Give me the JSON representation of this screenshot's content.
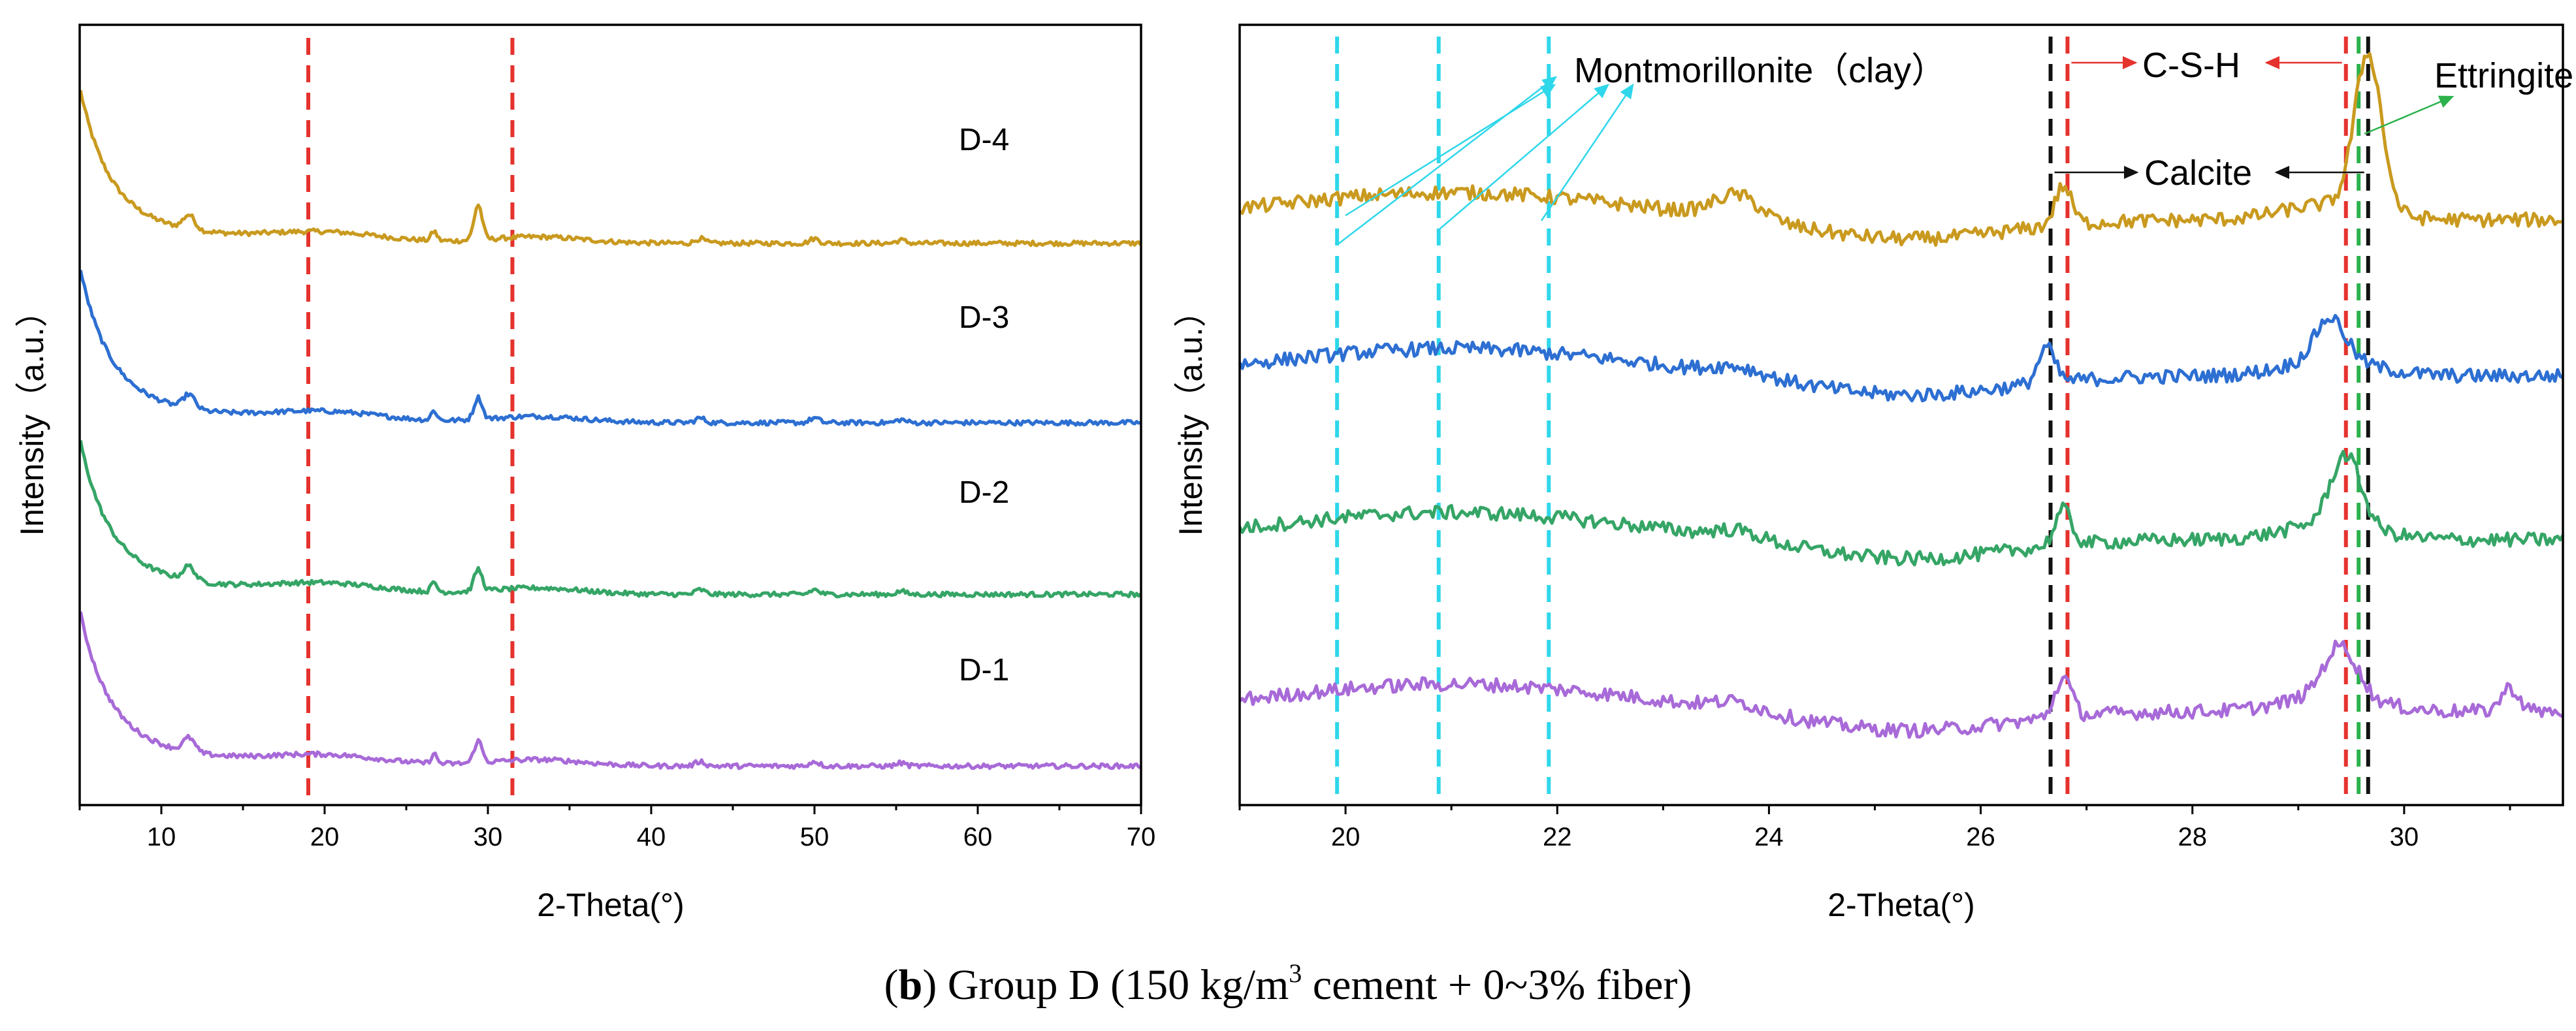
{
  "colors": {
    "D-4": "#c99a1f",
    "D-3": "#2d6fd2",
    "D-2": "#35a566",
    "D-1": "#a86ad8",
    "ref_red": "#e5322d",
    "ref_cyan": "#2fd7ea",
    "ref_black": "#111111",
    "ref_green": "#2bb24c"
  },
  "caption": {
    "open": "(",
    "bold": "b",
    "rest": ") Group D (150 kg/m",
    "sup": "3",
    "tail": " cement + 0~3% fiber)"
  },
  "chart_data": [
    {
      "type": "line",
      "xlabel": "2-Theta(°)",
      "ylabel": "Intensity（a.u.）",
      "xlim": [
        5,
        70
      ],
      "x_ticks": [
        "10",
        "20",
        "30",
        "40",
        "50",
        "60",
        "70"
      ],
      "grid": false,
      "reference_lines_x": [
        19,
        31.5
      ],
      "series": [
        {
          "name": "D-4",
          "label": "D-4",
          "baseline": 0.72,
          "peaks_at": [
            11.8,
            26.7,
            29.5,
            50
          ]
        },
        {
          "name": "D-3",
          "label": "D-3",
          "baseline": 0.49,
          "peaks_at": [
            11.5,
            26.6,
            29.2
          ]
        },
        {
          "name": "D-2",
          "label": "D-2",
          "baseline": 0.27,
          "peaks_at": [
            11.8,
            26.7,
            29.4
          ]
        },
        {
          "name": "D-1",
          "label": "D-1",
          "baseline": 0.05,
          "peaks_at": [
            11.5,
            26.7,
            29.4
          ]
        }
      ]
    },
    {
      "type": "line",
      "xlabel": "2-Theta(°)",
      "ylabel": "Intensity（a.u.）",
      "xlim": [
        19,
        31.5
      ],
      "x_ticks": [
        "20",
        "22",
        "24",
        "26",
        "28",
        "30"
      ],
      "grid": false,
      "reference_lines": {
        "montmorillonite": [
          19.92,
          20.88,
          21.92
        ],
        "calcite": [
          26.66,
          29.66
        ],
        "csh": [
          26.82,
          29.45
        ],
        "ettringite": [
          29.57
        ]
      },
      "annotations": {
        "montmorillonite": "Montmorillonite（clay）",
        "csh": "C-S-H",
        "calcite": "Calcite",
        "ettringite": "Ettringite"
      },
      "series": [
        {
          "name": "D-4",
          "baseline": 0.75,
          "peaks_at": [
            20.1,
            23.7,
            26.8,
            29.7
          ]
        },
        {
          "name": "D-3",
          "baseline": 0.55,
          "peaks_at": [
            20.0,
            26.65,
            29.3
          ]
        },
        {
          "name": "D-2",
          "baseline": 0.34,
          "peaks_at": [
            20.0,
            26.8,
            29.5
          ]
        },
        {
          "name": "D-1",
          "baseline": 0.12,
          "peaks_at": [
            20.1,
            26.65,
            29.45,
            31.0
          ]
        }
      ]
    }
  ]
}
